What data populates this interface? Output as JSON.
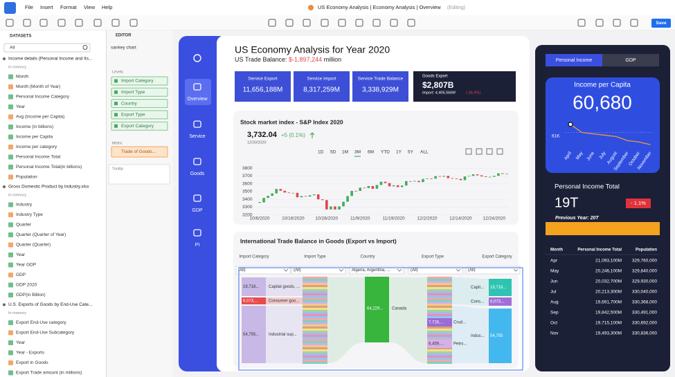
{
  "menu": {
    "items": [
      "File",
      "Insert",
      "Format",
      "View",
      "Help"
    ],
    "title": "US Economy Analysis | Economy Analysis | Overview",
    "status": "(Editing)",
    "save": "Save"
  },
  "datasets": {
    "header": "DATASETS",
    "filter": "All",
    "groups": [
      {
        "title": "Income details (Personal Income and Its...",
        "note": "In memory",
        "fields": [
          "Month",
          "Month (Month of Year)",
          "Personal Income Category",
          "Year",
          "Avg (Income per Capita)",
          "Income (in billions)",
          "Income per Capita",
          "Income per category",
          "Personal Income Total",
          "Personal Income Total(in billions)",
          "Population"
        ]
      },
      {
        "title": "Gross Domestic Product by Industry.xlsx",
        "note": "In memory",
        "fields": [
          "Industry",
          "Industry Type",
          "Quarter",
          "Quarter (Quarter of Year)",
          "Quarter (Quarter)",
          "Year",
          "Year GDP",
          "GDP",
          "GDP 2020",
          "GDP(in Billion)"
        ]
      },
      {
        "title": "U.S. Exports of Goods by End-Use Cate...",
        "note": "In memory",
        "fields": [
          "Export End-Use category",
          "Export End-Use Subcategory",
          "Year",
          "Year - Exports",
          "Export in Goods",
          "Export Trade amount (in millions)"
        ]
      }
    ]
  },
  "editor": {
    "header": "EDITOR",
    "chart_name": "sankey chart",
    "levels_label": "Levels",
    "levels": [
      "Import Category",
      "Import Type",
      "Country",
      "Export Type",
      "Export Category"
    ],
    "metric_label": "Metric",
    "metric": "Trade of Goods...",
    "tooltip_label": "Tooltip"
  },
  "nav": [
    "Overview",
    "Service",
    "Goods",
    "GDP",
    "PI"
  ],
  "header": {
    "title": "US Economy Analysis for Year 2020",
    "subtitle_prefix": "US Trade Balance: ",
    "subtitle_value": "$-1,897,244",
    "subtitle_suffix": " million"
  },
  "kpis": [
    {
      "label": "Service Export",
      "value": "11,656,188M"
    },
    {
      "label": "Service Import",
      "value": "8,317,259M"
    },
    {
      "label": "Service Trade Balance",
      "value": "3,338,929M"
    }
  ],
  "goods_kpi": {
    "label": "Goods Export",
    "value": "$2,807B",
    "detail": "Import: 4,406,566M",
    "change": "(-36.3%)"
  },
  "stock_chart": {
    "type": "candlestick",
    "title": "Stock market index - S&P Index 2020",
    "price": "3,732.04",
    "change": "+5 (0.1%)",
    "date": "12/30/2020",
    "ranges": [
      "1D",
      "5D",
      "1M",
      "3M",
      "6M",
      "YTD",
      "1Y",
      "5Y",
      "ALL"
    ],
    "active_range": "3M",
    "categories": [
      "10/6/2020",
      null,
      null,
      null,
      null,
      null,
      null,
      null,
      "10/16/2020",
      null,
      null,
      null,
      null,
      null,
      null,
      null,
      "10/28/2020",
      null,
      null,
      null,
      null,
      null,
      null,
      null,
      "11/9/2020",
      null,
      null,
      null,
      null,
      null,
      null,
      null,
      "11/19/2020",
      null,
      null,
      null,
      null,
      null,
      null,
      null,
      "12/2/2020",
      null,
      null,
      null,
      null,
      null,
      null,
      null,
      "12/14/2020",
      null,
      null,
      null,
      null,
      null,
      null,
      null,
      "12/24/2020",
      null,
      null,
      null
    ],
    "values": [
      3361,
      3419,
      3446,
      3477,
      3534,
      3511,
      3488,
      3483,
      3484,
      3427,
      3443,
      3436,
      3453,
      3465,
      3401,
      3391,
      3271,
      3310,
      3270,
      3310,
      3370,
      3443,
      3510,
      3509,
      3550,
      3545,
      3572,
      3537,
      3585,
      3627,
      3610,
      3568,
      3582,
      3558,
      3578,
      3635,
      3630,
      3638,
      3622,
      3662,
      3669,
      3666,
      3699,
      3692,
      3702,
      3673,
      3669,
      3663,
      3647,
      3695,
      3702,
      3722,
      3709,
      3695,
      3687,
      3690,
      3703,
      3735,
      3727,
      3732
    ],
    "ylim": [
      3180,
      3820
    ],
    "yticks": [
      3200,
      3300,
      3400,
      3500,
      3600,
      3700,
      3800
    ],
    "up_color": "#3fae5a",
    "down_color": "#e0474c"
  },
  "trade": {
    "title": "International Trade Balance in Goods (Export vs Import)",
    "columns": [
      "Import Category",
      "Import Type",
      "Country",
      "Export Type",
      "Export Category"
    ],
    "filters": [
      "(All)",
      "(All)",
      "Algeria, Argentina, ...",
      "(All)",
      "(All)"
    ],
    "import_category": [
      {
        "value": "19,718...",
        "label": "Capital goods, ..."
      },
      {
        "value": "6,073,...",
        "label": "Consumer goo..."
      },
      {
        "value": "54,755...",
        "label": "Industrial sup..."
      }
    ],
    "country": {
      "value": "64,229...",
      "label": "Canada"
    },
    "export_type": [
      {
        "value": "7,728,...",
        "label": "Crud..."
      },
      {
        "value": "6,459,...",
        "label": "Petro..."
      }
    ],
    "export_category": [
      {
        "label": "Capit...",
        "value": "19,718..."
      },
      {
        "label": "Cons...",
        "value": "6,073..."
      },
      {
        "label": "Indus...",
        "value": "54,755"
      }
    ]
  },
  "right_panel": {
    "tabs": [
      "Personal Income",
      "GDP"
    ],
    "income_chart": {
      "type": "line",
      "title": "Income per Capita",
      "value": "60,680",
      "categories": [
        "April",
        "May",
        "June",
        "July",
        "August",
        "September",
        "October",
        "November"
      ],
      "values": [
        61300,
        61000,
        60950,
        60900,
        60850,
        60700,
        60650,
        60550
      ],
      "ylim": [
        60400,
        61500
      ],
      "yticks": [
        {
          "value": 61000,
          "label": "61K"
        }
      ],
      "color": "#f29a38"
    },
    "total_title": "Personal Income Total",
    "total": "19T",
    "change": "- 1.1%",
    "previous": "Previous Year: 20T",
    "table": {
      "columns": [
        "Month",
        "Personal Income Total",
        "Population"
      ],
      "rows": [
        [
          "Apr",
          "21,093,100M",
          "329,760,000"
        ],
        [
          "May",
          "20,246,100M",
          "329,840,000"
        ],
        [
          "Jun",
          "20,032,700M",
          "329,930,000"
        ],
        [
          "Jul",
          "20,213,300M",
          "330,040,000"
        ],
        [
          "Aug",
          "19,691,700M",
          "330,368,000"
        ],
        [
          "Sep",
          "19,842,500M",
          "330,491,000"
        ],
        [
          "Oct",
          "19,715,100M",
          "330,692,000"
        ],
        [
          "Nov",
          "19,493,300M",
          "330,836,000"
        ]
      ]
    }
  }
}
